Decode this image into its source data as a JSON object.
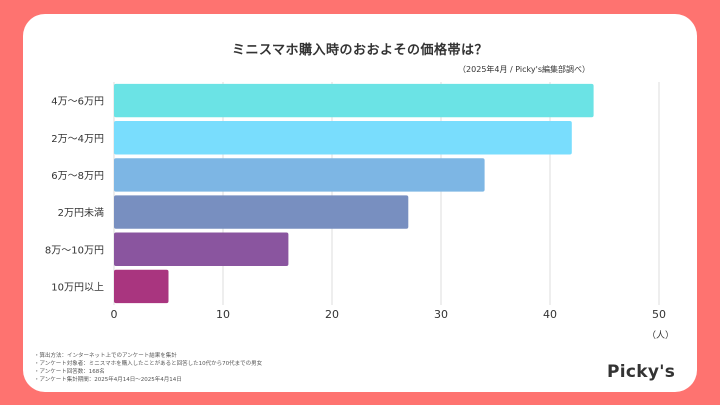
{
  "header": {
    "title": "ミニスマホ購入時のおおよその価格帯は？",
    "subtitle": "（2025年4月 / Picky's編集部調べ）"
  },
  "chart_data": {
    "type": "bar",
    "orientation": "horizontal",
    "title": "ミニスマホ購入時のおおよその価格帯は？",
    "subtitle": "（2025年4月 / Picky's編集部調べ）",
    "categories": [
      "4万〜6万円",
      "2万〜4万円",
      "6万〜8万円",
      "2万円未満",
      "8万〜10万円",
      "10万円以上"
    ],
    "values": [
      44,
      42,
      34,
      27,
      16,
      5
    ],
    "colors": [
      "#6be3e5",
      "#79ddfd",
      "#7db6e4",
      "#788fc0",
      "#8a559f",
      "#a9357f"
    ],
    "xlabel": "（人）",
    "ylabel": "",
    "xlim": [
      0,
      50
    ],
    "xticks": [
      0,
      10,
      20,
      30,
      40,
      50
    ],
    "grid": true,
    "legend": "none"
  },
  "footer": {
    "notes": [
      "・算出方法：インターネット上でのアンケート結果を集計",
      "・アンケート対象者：ミニスマホを購入したことがあると回答した10代から70代までの男女",
      "・アンケート回答数：168名",
      "・アンケート集計期間：2025年4月14日〜2025年4月14日"
    ],
    "logo": "Picky's"
  }
}
